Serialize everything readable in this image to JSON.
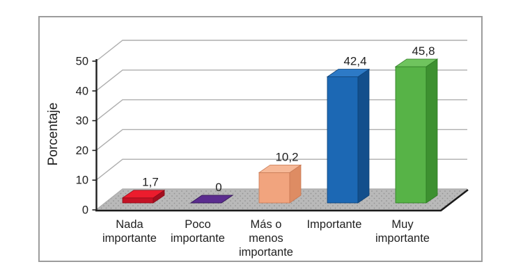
{
  "canvas": {
    "background": "#ffffff",
    "frame_border_color": "#9c9c9c"
  },
  "chart_data": {
    "type": "bar",
    "projection": "3d-column",
    "title": "",
    "ylabel": "Porcentaje",
    "xlabel": "",
    "ylim": [
      0,
      50
    ],
    "yticks": [
      0,
      10,
      20,
      30,
      40,
      50
    ],
    "grid": true,
    "legend": "none",
    "categories": [
      "Nada importante",
      "Poco importante",
      "Más o menos importante",
      "Importante",
      "Muy importante"
    ],
    "category_lines": [
      [
        "Nada",
        "importante"
      ],
      [
        "Poco",
        "importante"
      ],
      [
        "Más o",
        "menos",
        "importante"
      ],
      [
        "Importante"
      ],
      [
        "Muy",
        "importante"
      ]
    ],
    "values": [
      1.7,
      0,
      10.2,
      42.4,
      45.8
    ],
    "value_labels": [
      "1,7",
      "0",
      "10,2",
      "42,4",
      "45,8"
    ],
    "bar_colors": [
      {
        "name": "red",
        "front": "#c41326",
        "top": "#ec1c2d",
        "side": "#a30f1f",
        "stroke": "#8d0c1a"
      },
      {
        "name": "purple",
        "front": "#5b2c8f",
        "top": "#5b2c8f",
        "side": "#43206a",
        "stroke": "#3a1c5c"
      },
      {
        "name": "salmon",
        "front": "#f1a47e",
        "top": "#f6b897",
        "side": "#de8c63",
        "stroke": "#c87a55"
      },
      {
        "name": "blue",
        "front": "#1c68b4",
        "top": "#2d7ac6",
        "side": "#134f8c",
        "stroke": "#0e4276"
      },
      {
        "name": "green",
        "front": "#57b347",
        "top": "#6fc45e",
        "side": "#3d9130",
        "stroke": "#2e7a24"
      }
    ],
    "axis_color": "#1f1f1f",
    "gridline_color": "#aeaeae",
    "floor": {
      "fill": "#b9b9b9",
      "dot_color": "#949494",
      "edge_color": "#1a1a1a"
    },
    "text_color": "#1f1f1f"
  }
}
